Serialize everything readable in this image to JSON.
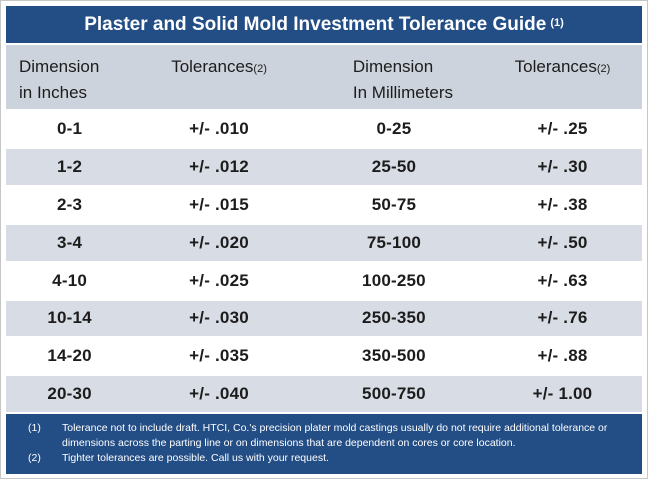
{
  "title": {
    "text": "Plaster and Solid Mold Investment Tolerance Guide",
    "superscript": "(1)"
  },
  "table": {
    "header": {
      "dim_inches": {
        "line1": "Dimension",
        "line2": "in Inches"
      },
      "tol_inches": {
        "label": "Tolerances",
        "sup": "(2)"
      },
      "dim_mm": {
        "line1": "Dimension",
        "line2": "In Millimeters"
      },
      "tol_mm": {
        "label": "Tolerances",
        "sup": "(2)"
      }
    },
    "rows": [
      [
        "0-1",
        "+/- .010",
        "0-25",
        "+/- .25"
      ],
      [
        "1-2",
        "+/- .012",
        "25-50",
        "+/- .30"
      ],
      [
        "2-3",
        "+/- .015",
        "50-75",
        "+/- .38"
      ],
      [
        "3-4",
        "+/- .020",
        "75-100",
        "+/- .50"
      ],
      [
        "4-10",
        "+/- .025",
        "100-250",
        "+/- .63"
      ],
      [
        "10-14",
        "+/- .030",
        "250-350",
        "+/- .76"
      ],
      [
        "14-20",
        "+/- .035",
        "350-500",
        "+/- .88"
      ],
      [
        "20-30",
        "+/- .040",
        "500-750",
        "+/- 1.00"
      ]
    ]
  },
  "footnotes": [
    {
      "num": "(1)",
      "text": "Tolerance not to include draft.  HTCI, Co.'s precision plater mold castings usually do not require additional tolerance or dimensions across the parting line or on dimensions that are dependent on cores or core location."
    },
    {
      "num": "(2)",
      "text": "Tighter tolerances are possible.  Call us with your request."
    }
  ],
  "colors": {
    "header_blue": "#234d85",
    "header_row_gray": "#ccd3dc",
    "band_gray": "#d8dde5",
    "text_dark": "#1c1c1c",
    "text_white": "#ffffff"
  }
}
